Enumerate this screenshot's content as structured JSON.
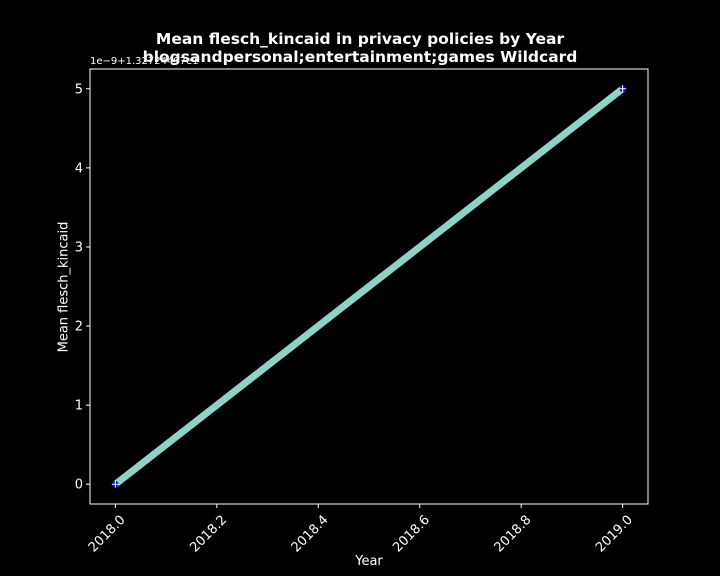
{
  "chart_data": {
    "type": "line",
    "title_line1": "Mean flesch_kincaid in privacy policies by Year",
    "title_line2": "blogsandpersonal;entertainment;games Wildcard",
    "xlabel": "Year",
    "ylabel": "Mean flesch_kincaid",
    "offset_text": "1e−9+1.32724497e1",
    "x": [
      2018.0,
      2019.0
    ],
    "series": [
      {
        "values": [
          0,
          5
        ],
        "color": "#8dd3c7",
        "marker_color": "#0000ff"
      }
    ],
    "xlim": [
      2017.95,
      2019.05
    ],
    "ylim": [
      -0.25,
      5.25
    ],
    "xticks": [
      2018.0,
      2018.2,
      2018.4,
      2018.6,
      2018.8,
      2019.0
    ],
    "xtick_labels": [
      "2018.0",
      "2018.2",
      "2018.4",
      "2018.6",
      "2018.8",
      "2019.0"
    ],
    "yticks": [
      0,
      1,
      2,
      3,
      4,
      5
    ],
    "ytick_labels": [
      "0",
      "1",
      "2",
      "3",
      "4",
      "5"
    ],
    "grid": false,
    "background": "#000000",
    "foreground": "#ffffff"
  }
}
